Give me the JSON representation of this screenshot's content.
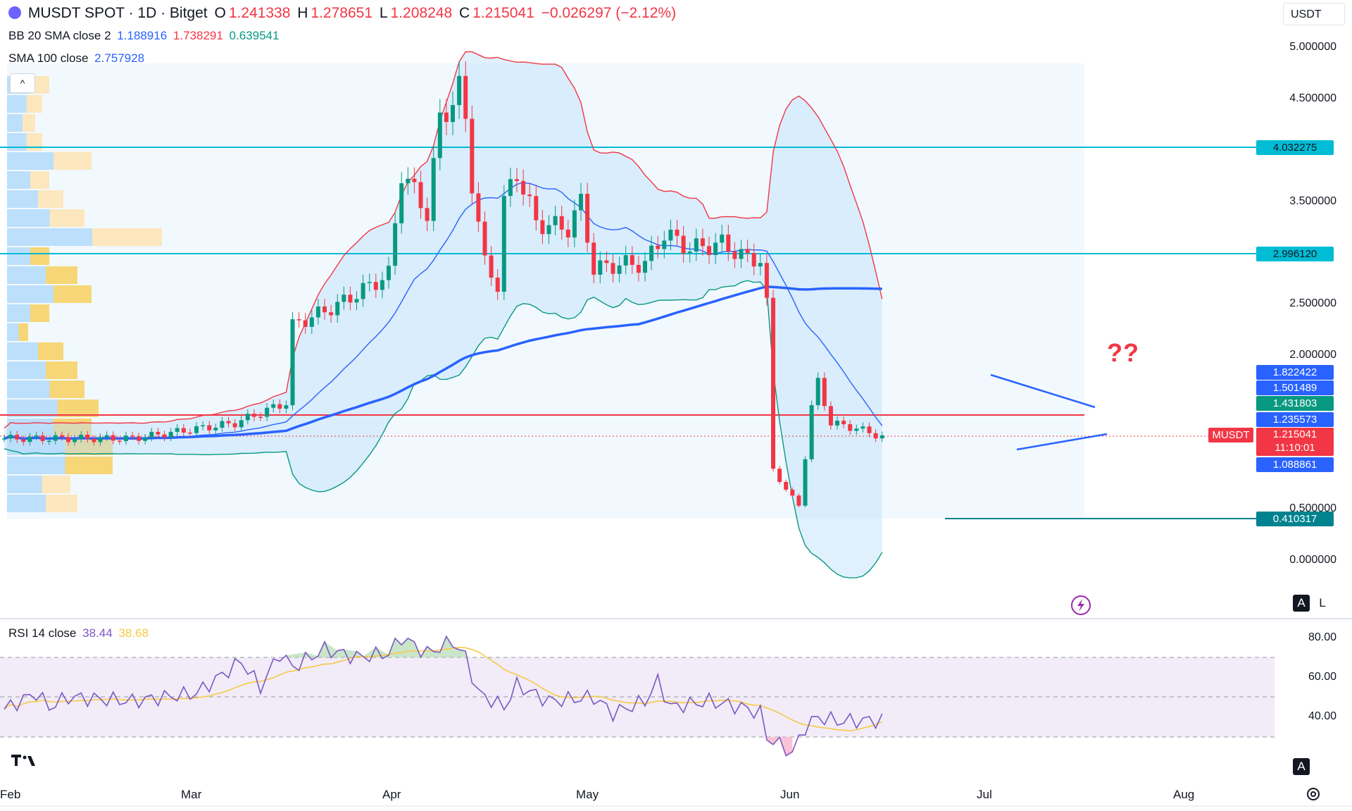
{
  "header": {
    "symbol": "MUSDT SPOT · 1D · Bitget",
    "open_label": "O",
    "open": "1.241338",
    "high_label": "H",
    "high": "1.278651",
    "low_label": "L",
    "low": "1.208248",
    "close_label": "C",
    "close": "1.215041",
    "change": "−0.026297 (−2.12%)"
  },
  "bb_legend": {
    "label": "BB 20 SMA close 2",
    "basis": "1.188916",
    "upper": "1.738291",
    "lower": "0.639541"
  },
  "sma_legend": {
    "label": "SMA 100 close",
    "value": "2.757928"
  },
  "rsi_legend": {
    "label": "RSI 14 close",
    "rsi": "38.44",
    "ma": "38.68"
  },
  "currency": "USDT",
  "annotation": "??",
  "price_axis": [
    "5.000000",
    "4.500000",
    "3.500000",
    "2.500000",
    "2.000000",
    "0.500000",
    "0.000000"
  ],
  "rsi_axis": [
    "80.00",
    "60.00",
    "40.00"
  ],
  "time_axis": [
    "Feb",
    "Mar",
    "Apr",
    "May",
    "Jun",
    "Jul",
    "Aug"
  ],
  "price_tags": {
    "level_top": "4.032275",
    "level_mid": "2.996120",
    "bb_upper_tag": "1.822422",
    "tag_2": "1.501489",
    "tag_3": "1.431803",
    "tag_4": "1.235573",
    "symbol_tag": "MUSDT",
    "last_price": "1.215041",
    "countdown": "11:10:01",
    "tag_bottom": "1.088861",
    "level_low": "0.410317"
  },
  "buttons": {
    "auto": "A",
    "log": "L",
    "collapse": "^"
  },
  "colors": {
    "up": "#089981",
    "down": "#f23645",
    "bb_upper": "#f23645",
    "bb_lower": "#089981",
    "bb_basis": "#2962ff",
    "sma100": "#2962ff",
    "level_line": "#00bcd4",
    "rsi": "#7e57c2",
    "rsi_ma": "#f7c948",
    "horizontal_red": "#f23645"
  },
  "chart_data": {
    "type": "candlestick",
    "symbol": "MUSDT",
    "interval": "1D",
    "ylim": [
      0,
      5
    ],
    "horizontal_levels": [
      4.032275,
      2.99612,
      1.235573,
      0.410317
    ],
    "last_close": 1.215041,
    "series": [
      {
        "name": "BB 20 SMA close 2"
      },
      {
        "name": "SMA 100 close"
      },
      {
        "name": "RSI 14 close",
        "ylim": [
          20,
          80
        ],
        "bands": [
          30,
          70
        ]
      }
    ]
  }
}
